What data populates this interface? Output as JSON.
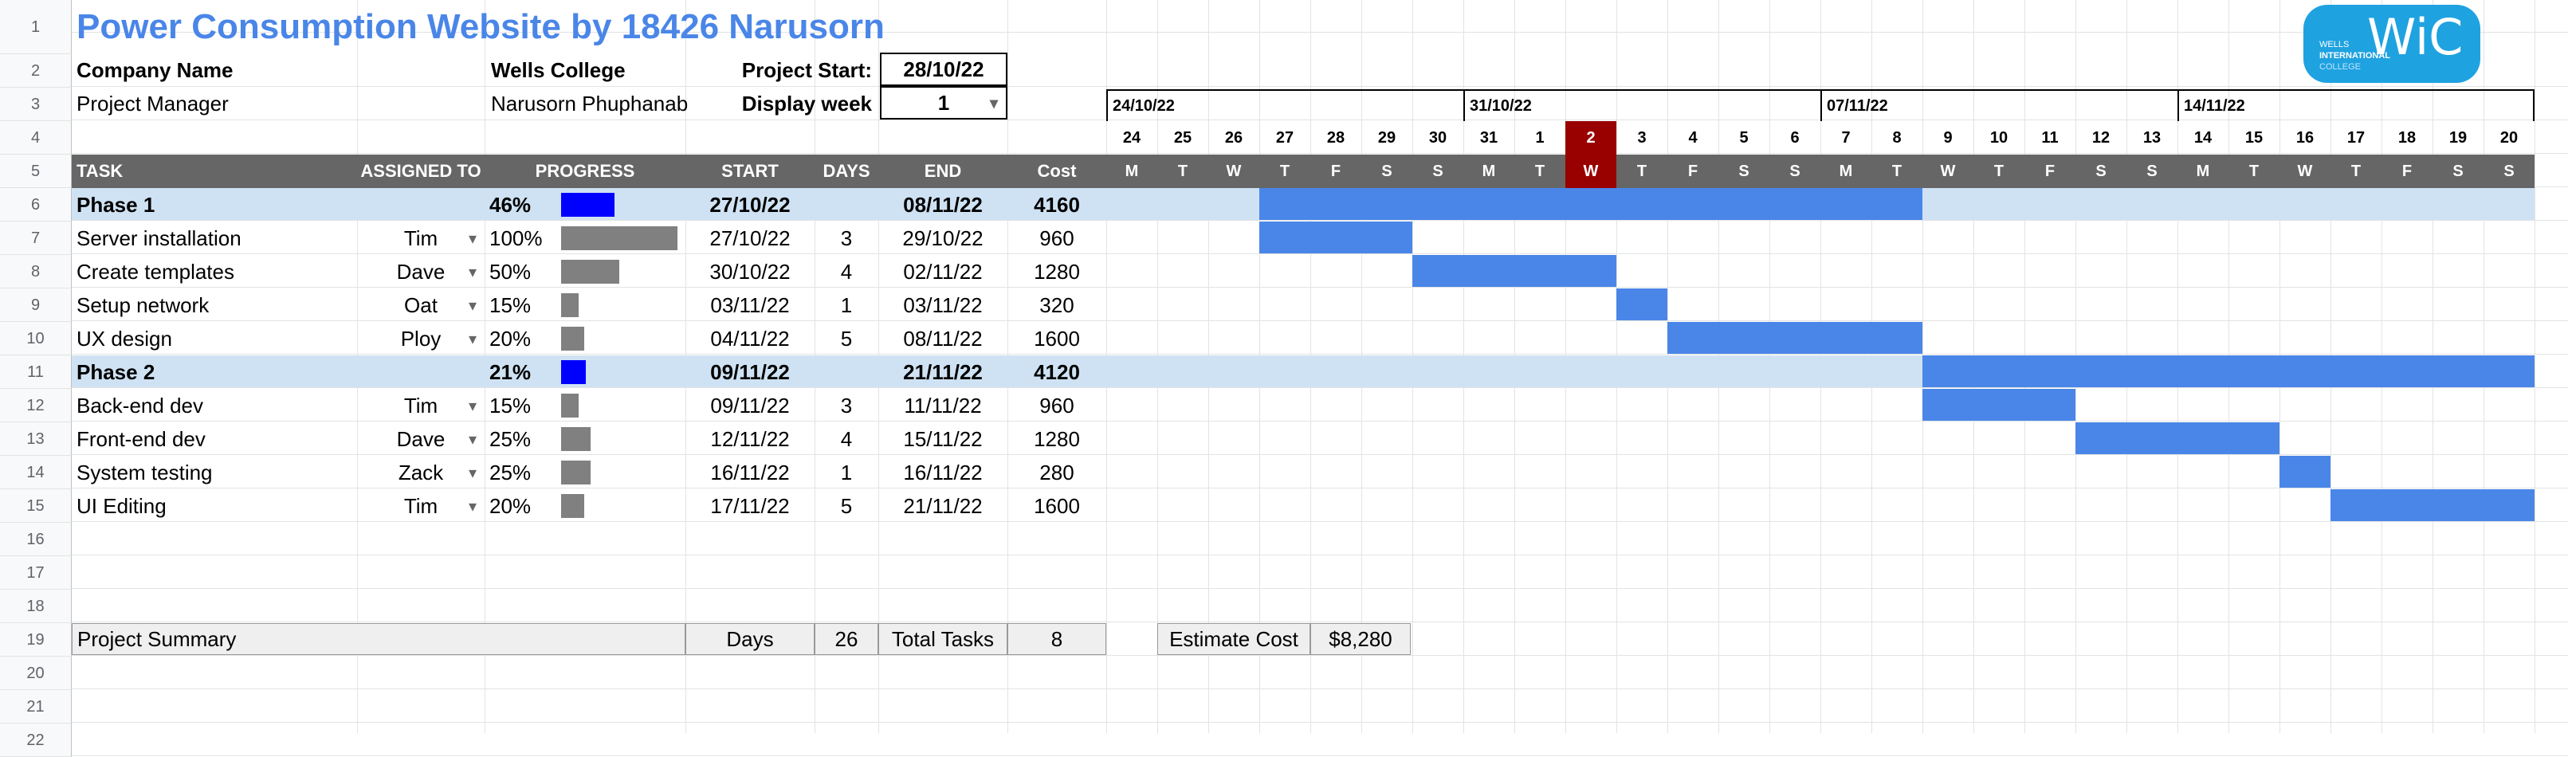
{
  "title": "Power Consumption Website by 18426 Narusorn",
  "row_numbers": [
    "1",
    "2",
    "3",
    "4",
    "5",
    "6",
    "7",
    "8",
    "9",
    "10",
    "11",
    "12",
    "13",
    "14",
    "15",
    "16",
    "17",
    "18",
    "19",
    "20",
    "21",
    "22"
  ],
  "company_label": "Company Name",
  "company_value": "Wells College",
  "pm_label": "Project Manager",
  "pm_value": "Narusorn Phuphanab",
  "project_start_label": "Project Start:",
  "project_start_value": "28/10/22",
  "display_week_label": "Display week",
  "display_week_value": "1",
  "logo": {
    "main": "WiC",
    "line1": "WELLS",
    "line2": "INTERNATIONAL",
    "line3": "COLLEGE"
  },
  "headers": [
    "TASK",
    "ASSIGNED TO",
    "PROGRESS",
    "START",
    "DAYS",
    "END",
    "Cost"
  ],
  "weeks": [
    "24/10/22",
    "31/10/22",
    "07/11/22",
    "14/11/22"
  ],
  "day_numbers": [
    "24",
    "25",
    "26",
    "27",
    "28",
    "29",
    "30",
    "31",
    "1",
    "2",
    "3",
    "4",
    "5",
    "6",
    "7",
    "8",
    "9",
    "10",
    "11",
    "12",
    "13",
    "14",
    "15",
    "16",
    "17",
    "18",
    "19",
    "20"
  ],
  "day_letters": [
    "M",
    "T",
    "W",
    "T",
    "F",
    "S",
    "S",
    "M",
    "T",
    "W",
    "T",
    "F",
    "S",
    "S",
    "M",
    "T",
    "W",
    "T",
    "F",
    "S",
    "S",
    "M",
    "T",
    "W",
    "T",
    "F",
    "S",
    "S"
  ],
  "rows": [
    {
      "task": "Phase 1",
      "assigned": "",
      "progress": "46%",
      "progress_value": 0.46,
      "start": "27/10/22",
      "days": "",
      "end": "08/11/22",
      "cost": "4160",
      "phase": true
    },
    {
      "task": "Server installation",
      "assigned": "Tim",
      "progress": "100%",
      "progress_value": 1.0,
      "start": "27/10/22",
      "days": "3",
      "end": "29/10/22",
      "cost": "960",
      "phase": false
    },
    {
      "task": "Create templates",
      "assigned": "Dave",
      "progress": "50%",
      "progress_value": 0.5,
      "start": "30/10/22",
      "days": "4",
      "end": "02/11/22",
      "cost": "1280",
      "phase": false
    },
    {
      "task": "Setup network",
      "assigned": "Oat",
      "progress": "15%",
      "progress_value": 0.15,
      "start": "03/11/22",
      "days": "1",
      "end": "03/11/22",
      "cost": "320",
      "phase": false
    },
    {
      "task": "UX design",
      "assigned": "Ploy",
      "progress": "20%",
      "progress_value": 0.2,
      "start": "04/11/22",
      "days": "5",
      "end": "08/11/22",
      "cost": "1600",
      "phase": false
    },
    {
      "task": "Phase 2",
      "assigned": "",
      "progress": "21%",
      "progress_value": 0.21,
      "start": "09/11/22",
      "days": "",
      "end": "21/11/22",
      "cost": "4120",
      "phase": true
    },
    {
      "task": "Back-end dev",
      "assigned": "Tim",
      "progress": "15%",
      "progress_value": 0.15,
      "start": "09/11/22",
      "days": "3",
      "end": "11/11/22",
      "cost": "960",
      "phase": false
    },
    {
      "task": "Front-end dev",
      "assigned": "Dave",
      "progress": "25%",
      "progress_value": 0.25,
      "start": "12/11/22",
      "days": "4",
      "end": "15/11/22",
      "cost": "1280",
      "phase": false
    },
    {
      "task": "System testing",
      "assigned": "Zack",
      "progress": "25%",
      "progress_value": 0.25,
      "start": "16/11/22",
      "days": "1",
      "end": "16/11/22",
      "cost": "280",
      "phase": false
    },
    {
      "task": "UI Editing",
      "assigned": "Tim",
      "progress": "20%",
      "progress_value": 0.2,
      "start": "17/11/22",
      "days": "5",
      "end": "21/11/22",
      "cost": "1600",
      "phase": false
    }
  ],
  "summary": {
    "label": "Project Summary",
    "days_label": "Days",
    "days_value": "26",
    "tasks_label": "Total Tasks",
    "tasks_value": "8",
    "cost_label": "Estimate Cost",
    "cost_value": "$8,280"
  },
  "colors": {
    "title": "#4a86e8",
    "gantt": "#4a86e8",
    "phase_bg": "#cfe2f3",
    "phase_progress": "#0000ff",
    "task_progress": "#808080",
    "today": "#990000",
    "header_bg": "#666666"
  }
}
